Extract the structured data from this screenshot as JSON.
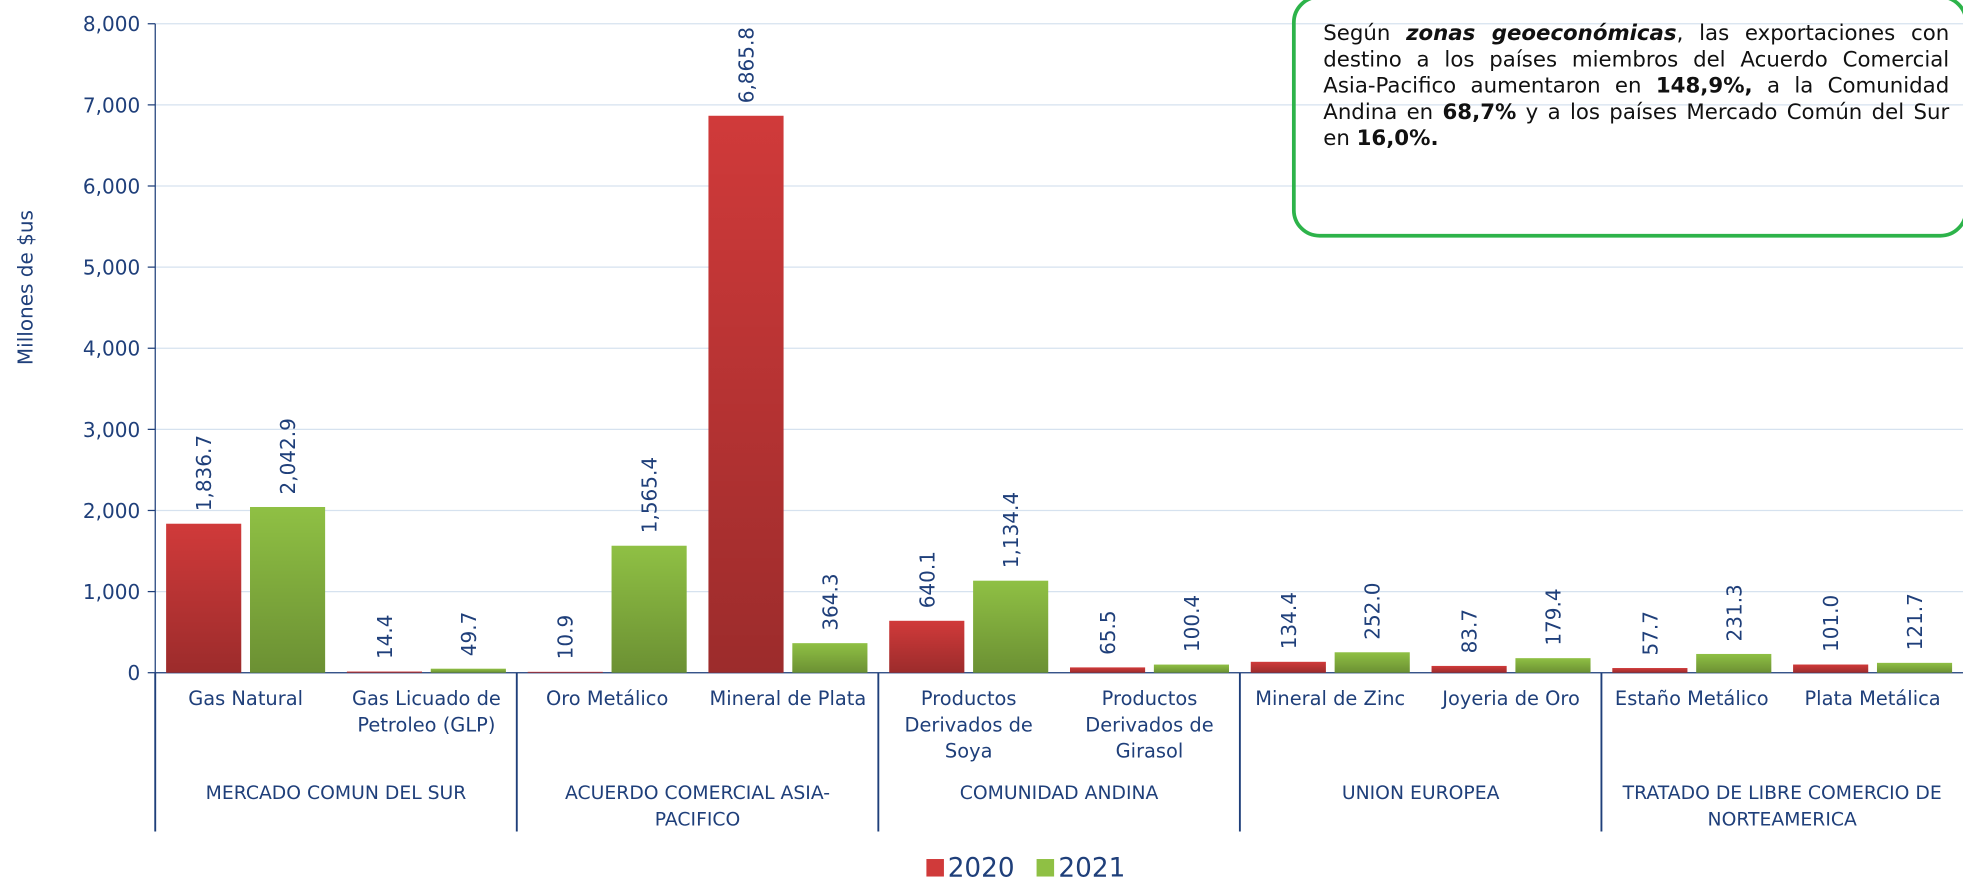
{
  "chart_data": {
    "type": "bar",
    "y_label": "Millones de $us",
    "ylim": [
      0,
      8000
    ],
    "yticks": [
      0,
      {
        "value": 1000,
        "label": "1,000"
      },
      {
        "value": 2000,
        "label": "2,000"
      },
      {
        "value": 3000,
        "label": "3,000"
      },
      {
        "value": 4000,
        "label": "4,000"
      },
      {
        "value": 5000,
        "label": "5,000"
      },
      {
        "value": 6000,
        "label": "6,000"
      },
      {
        "value": 7000,
        "label": "7,000"
      },
      {
        "value": 8000,
        "label": "8,000"
      }
    ],
    "grid": true,
    "groups": [
      {
        "name": "MERCADO COMUN DEL SUR",
        "categories": [
          "Gas Natural",
          "Gas Licuado de Petroleo (GLP)"
        ]
      },
      {
        "name": "ACUERDO COMERCIAL ASIA-PACIFICO",
        "categories": [
          "Oro Metálico",
          "Mineral de Plata"
        ]
      },
      {
        "name": "COMUNIDAD ANDINA",
        "categories": [
          "Productos Derivados de Soya",
          "Productos Derivados de Girasol"
        ]
      },
      {
        "name": "UNION EUROPEA",
        "categories": [
          "Mineral de Zinc",
          "Joyeria de Oro"
        ]
      },
      {
        "name": "TRATADO DE LIBRE COMERCIO DE NORTEAMERICA",
        "categories": [
          "Estaño Metálico",
          "Plata Metálica"
        ]
      }
    ],
    "series": [
      {
        "name": "2020",
        "color": "#d03a3a",
        "values": [
          1836.7,
          14.4,
          10.9,
          6865.8,
          640.1,
          65.5,
          134.4,
          83.7,
          57.7,
          101.0
        ],
        "value_labels": [
          "1,836.7",
          "14.4",
          "10.9",
          "6,865.8",
          "640.1",
          "65.5",
          "134.4",
          "83.7",
          "57.7",
          "101.0"
        ]
      },
      {
        "name": "2021",
        "color": "#8fc044",
        "values": [
          2042.9,
          49.7,
          1565.4,
          364.3,
          1134.4,
          100.4,
          252.0,
          179.4,
          231.3,
          121.7
        ],
        "value_labels": [
          "2,042.9",
          "49.7",
          "1,565.4",
          "364.3",
          "1,134.4",
          "100.4",
          "252.0",
          "179.4",
          "231.3",
          "121.7"
        ]
      }
    ],
    "legend": "bottom",
    "annotation": [
      "Según ",
      "zonas geoeconómicas",
      ", las exportaciones con destino a los países miembros del Acuerdo Comercial Asia-Pacifico aumentaron en ",
      "148,9%,",
      " a la Comunidad Andina en ",
      "68,7%",
      " y a los países  Mercado Común del Sur en ",
      "16,0%."
    ]
  }
}
